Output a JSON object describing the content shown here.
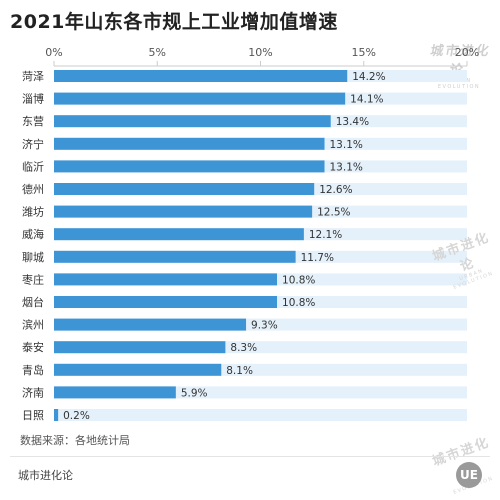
{
  "title": "2021年山东各市规上工业增加值增速",
  "source": "数据来源：各地统计局",
  "brand": "城市进化论",
  "logo_text": "UE",
  "watermark": {
    "text": "城市进化论",
    "sub": "URBAN EVOLUTION"
  },
  "chart_data": {
    "type": "bar",
    "orientation": "horizontal",
    "title": "2021年山东各市规上工业增加值增速",
    "categories": [
      "菏泽",
      "淄博",
      "东营",
      "济宁",
      "临沂",
      "德州",
      "潍坊",
      "威海",
      "聊城",
      "枣庄",
      "烟台",
      "滨州",
      "泰安",
      "青岛",
      "济南",
      "日照"
    ],
    "values": [
      14.2,
      14.1,
      13.4,
      13.1,
      13.1,
      12.6,
      12.5,
      12.1,
      11.7,
      10.8,
      10.8,
      9.3,
      8.3,
      8.1,
      5.9,
      0.2
    ],
    "value_labels": [
      "14.2%",
      "14.1%",
      "13.4%",
      "13.1%",
      "13.1%",
      "12.6%",
      "12.5%",
      "12.1%",
      "11.7%",
      "10.8%",
      "10.8%",
      "9.3%",
      "8.3%",
      "8.1%",
      "5.9%",
      "0.2%"
    ],
    "x_ticks": [
      "0%",
      "5%",
      "10%",
      "15%",
      "20%"
    ],
    "xlim": [
      0,
      20
    ],
    "colors": {
      "bar": "#3d95d6",
      "track": "#e4f0fa",
      "axis_text": "#555555",
      "grid": "#cccccc"
    }
  }
}
